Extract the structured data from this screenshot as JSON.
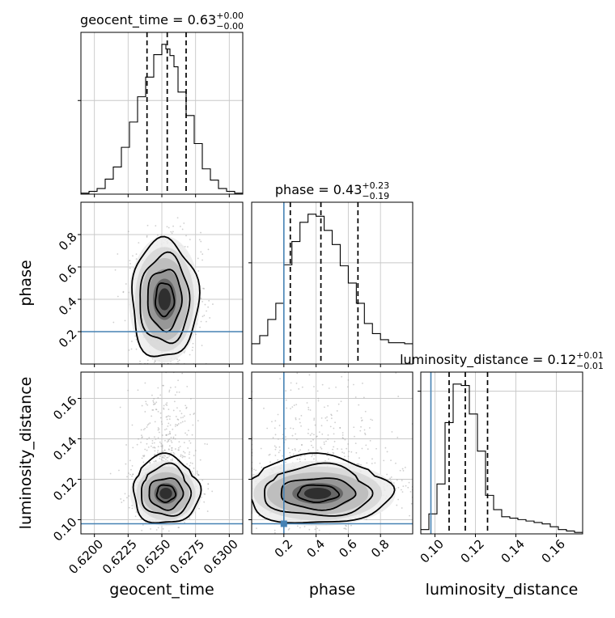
{
  "chart_data": {
    "type": "corner",
    "parameters": [
      "geocent_time",
      "phase",
      "luminosity_distance"
    ],
    "truth": {
      "geocent_time": null,
      "phase": 0.2,
      "luminosity_distance": 0.098
    },
    "colors": {
      "truth": "#4682b4",
      "hist": "#000000",
      "grid": "#c8c8c8",
      "scatter": "#a0a0a0"
    },
    "grid": true,
    "panels": {
      "geocent_time": {
        "title": {
          "prefix": "geocent_time = 0.63",
          "sup": "+0.00",
          "sub": "−0.00"
        },
        "range": [
          0.619,
          0.631
        ],
        "ticks": [
          0.62,
          0.6225,
          0.625,
          0.6275,
          0.63
        ],
        "tick_labels": [
          "0.6200",
          "0.6225",
          "0.6250",
          "0.6275",
          "0.6300"
        ],
        "axis_label": "geocent_time",
        "quantiles": [
          0.6239,
          0.6254,
          0.6268
        ],
        "bin_edges": [
          0.619,
          0.6196,
          0.6202,
          0.6208,
          0.6214,
          0.622,
          0.6226,
          0.6232,
          0.6238,
          0.6244,
          0.625,
          0.6253,
          0.6256,
          0.6259,
          0.6262,
          0.6268,
          0.6274,
          0.628,
          0.6286,
          0.6292,
          0.6298,
          0.6304,
          0.631
        ],
        "counts": [
          1,
          3,
          6,
          16,
          29,
          50,
          77,
          104,
          125,
          149,
          160,
          155,
          148,
          136,
          109,
          84,
          54,
          27,
          15,
          6,
          3,
          1
        ]
      },
      "phase": {
        "title": {
          "prefix": "phase = 0.43",
          "sup": "+0.23",
          "sub": "−0.19"
        },
        "range": [
          0.0,
          1.0
        ],
        "ticks": [
          0.2,
          0.4,
          0.6,
          0.8
        ],
        "tick_labels": [
          "0.2",
          "0.4",
          "0.6",
          "0.8"
        ],
        "axis_label": "phase",
        "quantiles": [
          0.24,
          0.43,
          0.66
        ],
        "bin_edges": [
          0.0,
          0.05,
          0.1,
          0.15,
          0.2,
          0.25,
          0.3,
          0.35,
          0.4,
          0.45,
          0.5,
          0.55,
          0.6,
          0.65,
          0.7,
          0.75,
          0.8,
          0.85,
          0.9,
          0.95,
          1.0
        ],
        "counts": [
          20,
          28,
          44,
          60,
          98,
          121,
          140,
          148,
          146,
          132,
          118,
          97,
          80,
          60,
          40,
          30,
          24,
          21,
          21,
          20
        ]
      },
      "luminosity_distance": {
        "title": {
          "prefix": "luminosity_distance = 0.12",
          "sup": "+0.01",
          "sub": "−0.01"
        },
        "range": [
          0.093,
          0.173
        ],
        "ticks": [
          0.1,
          0.12,
          0.14,
          0.16
        ],
        "tick_labels": [
          "0.10",
          "0.12",
          "0.14",
          "0.16"
        ],
        "axis_label": "luminosity_distance",
        "quantiles": [
          0.107,
          0.115,
          0.126
        ],
        "bin_edges": [
          0.093,
          0.097,
          0.101,
          0.105,
          0.109,
          0.113,
          0.117,
          0.121,
          0.125,
          0.129,
          0.133,
          0.137,
          0.141,
          0.145,
          0.149,
          0.153,
          0.157,
          0.161,
          0.165,
          0.169,
          0.173
        ],
        "counts": [
          3,
          14,
          35,
          78,
          105,
          104,
          84,
          58,
          27,
          17,
          12,
          11,
          10,
          9,
          8,
          7,
          5,
          3,
          2,
          1
        ]
      }
    },
    "joint": [
      {
        "x": "geocent_time",
        "y": "phase",
        "center": [
          0.6252,
          0.4
        ],
        "sd": [
          0.00115,
          0.17
        ]
      },
      {
        "x": "geocent_time",
        "y": "luminosity_distance",
        "center": [
          0.6253,
          0.113
        ],
        "sd": [
          0.00115,
          0.007
        ]
      },
      {
        "x": "phase",
        "y": "luminosity_distance",
        "center": [
          0.41,
          0.113
        ],
        "sd": [
          0.21,
          0.007
        ]
      }
    ],
    "y_axes": {
      "phase": {
        "ticks": [
          0.2,
          0.4,
          0.6,
          0.8
        ],
        "tick_labels": [
          "0.2",
          "0.4",
          "0.6",
          "0.8"
        ],
        "axis_label": "phase"
      },
      "luminosity_distance": {
        "ticks": [
          0.1,
          0.12,
          0.14,
          0.16
        ],
        "tick_labels": [
          "0.10",
          "0.12",
          "0.14",
          "0.16"
        ],
        "axis_label": "luminosity_distance"
      }
    }
  }
}
